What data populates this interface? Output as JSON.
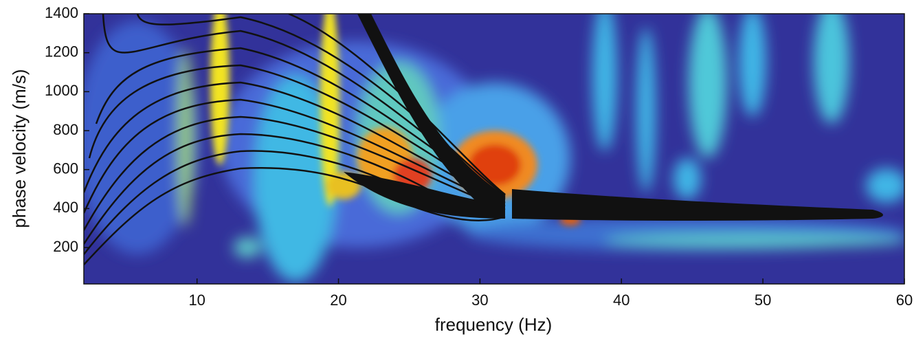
{
  "chart_data": {
    "type": "heatmap",
    "xlabel": "frequency (Hz)",
    "ylabel": "phase velocity (m/s)",
    "xlim": [
      2,
      60
    ],
    "ylim": [
      13,
      1400
    ],
    "xticks": [
      10,
      20,
      30,
      40,
      50,
      60
    ],
    "yticks": [
      200,
      400,
      600,
      800,
      1000,
      1200,
      1400
    ]
  }
}
